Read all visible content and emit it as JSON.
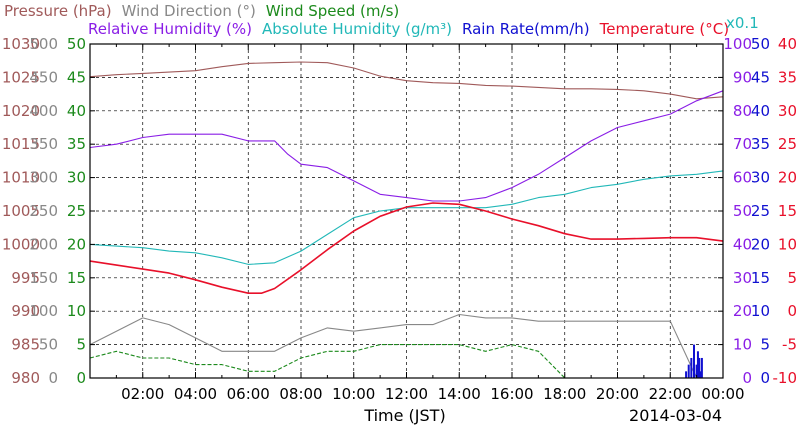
{
  "chart_data": {
    "type": "line",
    "date_label": "2014-03-04",
    "xlabel": "Time (JST)",
    "x_ticks": [
      "02:00",
      "04:00",
      "06:00",
      "08:00",
      "10:00",
      "12:00",
      "14:00",
      "16:00",
      "18:00",
      "20:00",
      "22:00",
      "00:00"
    ],
    "x_range_hours": [
      0,
      24
    ],
    "grid": true,
    "colors": {
      "pressure": "#a05a5a",
      "wind_direction": "#888888",
      "wind_speed": "#1c8a1c",
      "relative_humidity": "#8a1ee6",
      "absolute_humidity": "#22b8b8",
      "rain_rate": "#1010d0",
      "temperature": "#e8102a"
    },
    "legend_row1": [
      {
        "key": "pressure",
        "label": "Pressure (hPa)"
      },
      {
        "key": "wind_direction",
        "label": "Wind Direction (°)"
      },
      {
        "key": "wind_speed",
        "label": "Wind Speed (m/s)"
      }
    ],
    "legend_row2": [
      {
        "key": "relative_humidity",
        "label": "Relative Humidity (%)"
      },
      {
        "key": "absolute_humidity",
        "label": "Absolute Humidity (g/m³)"
      },
      {
        "key": "rain_rate",
        "label": "Rain Rate(mm/h)"
      },
      {
        "key": "temperature",
        "label": "Temperature (°C)"
      }
    ],
    "multiplier_label": "x0.1",
    "axes": {
      "pressure": {
        "range": [
          980,
          1030
        ],
        "ticks": [
          "1030",
          "1025",
          "1020",
          "1015",
          "1010",
          "1005",
          "1000",
          "995",
          "990",
          "985",
          "980"
        ]
      },
      "wind_direction": {
        "range": [
          0,
          500
        ],
        "ticks": [
          "500",
          "450",
          "400",
          "350",
          "300",
          "250",
          "200",
          "150",
          "100",
          "50",
          "0"
        ]
      },
      "wind_speed": {
        "range": [
          0,
          50
        ],
        "ticks": [
          "50",
          "45",
          "40",
          "35",
          "30",
          "25",
          "20",
          "15",
          "10",
          "5",
          "0"
        ]
      },
      "relative_humidity": {
        "range": [
          0,
          100
        ],
        "ticks": [
          "100",
          "90",
          "80",
          "70",
          "60",
          "50",
          "40",
          "30",
          "20",
          "10",
          "0"
        ]
      },
      "rain_rate": {
        "range": [
          0,
          50
        ],
        "ticks": [
          "50",
          "45",
          "40",
          "35",
          "30",
          "25",
          "20",
          "15",
          "10",
          "5",
          "0"
        ]
      },
      "temperature": {
        "range": [
          -10,
          40
        ],
        "ticks": [
          "40",
          "35",
          "30",
          "25",
          "20",
          "15",
          "10",
          "5",
          "0",
          "-5",
          "-10"
        ]
      }
    },
    "series": [
      {
        "key": "pressure",
        "axis": "pressure",
        "x": [
          0,
          1,
          2,
          3,
          4,
          5,
          6,
          7,
          8,
          9,
          10,
          11,
          12,
          13,
          14,
          15,
          16,
          17,
          18,
          19,
          20,
          21,
          22,
          23,
          24
        ],
        "y": [
          1025.1,
          1025.4,
          1025.6,
          1025.8,
          1026.0,
          1026.6,
          1027.1,
          1027.2,
          1027.3,
          1027.2,
          1026.4,
          1025.2,
          1024.5,
          1024.2,
          1024.1,
          1023.8,
          1023.7,
          1023.5,
          1023.3,
          1023.3,
          1023.2,
          1023.0,
          1022.5,
          1021.8,
          1022.1
        ]
      },
      {
        "key": "relative_humidity",
        "axis": "relative_humidity",
        "x": [
          0,
          1,
          2,
          3,
          4,
          5,
          6,
          7,
          7.5,
          8,
          9,
          10,
          11,
          12,
          13,
          14,
          15,
          16,
          17,
          18,
          19,
          20,
          21,
          22,
          23,
          24
        ],
        "y": [
          69,
          70,
          72,
          73,
          73,
          73,
          71,
          71,
          67,
          64,
          63,
          59,
          55,
          54,
          53,
          53,
          54,
          57,
          61,
          66,
          71,
          75,
          77,
          79,
          83,
          86
        ]
      },
      {
        "key": "absolute_humidity",
        "axis": "relative_humidity",
        "x": [
          0,
          1,
          2,
          3,
          4,
          5,
          6,
          7,
          8,
          9,
          10,
          11,
          12,
          13,
          14,
          15,
          16,
          17,
          18,
          19,
          20,
          21,
          22,
          23,
          24
        ],
        "y": [
          40,
          39.5,
          39,
          38,
          37.5,
          36,
          34,
          34.5,
          38,
          43,
          48,
          50,
          51,
          51,
          51,
          51,
          52,
          54,
          55,
          57,
          58,
          59.5,
          60.5,
          61,
          62
        ]
      },
      {
        "key": "temperature",
        "axis": "temperature",
        "x": [
          0,
          1,
          2,
          3,
          4,
          5,
          6,
          6.5,
          7,
          8,
          9,
          10,
          11,
          12,
          13,
          14,
          15,
          16,
          17,
          18,
          19,
          20,
          21,
          22,
          23,
          24
        ],
        "y": [
          7.5,
          6.9,
          6.3,
          5.7,
          4.7,
          3.6,
          2.7,
          2.7,
          3.4,
          6.2,
          9.2,
          12.0,
          14.2,
          15.6,
          16.2,
          16.0,
          15.0,
          13.8,
          12.8,
          11.6,
          10.8,
          10.8,
          10.9,
          11.0,
          11.0,
          10.5
        ]
      },
      {
        "key": "wind_direction",
        "axis": "wind_direction",
        "x": [
          0,
          1,
          2,
          3,
          4,
          5,
          6,
          7,
          8,
          9,
          10,
          11,
          12,
          13,
          14,
          15,
          16,
          17,
          18,
          19,
          20,
          21,
          22,
          23,
          24
        ],
        "y": [
          50,
          70,
          90,
          80,
          60,
          40,
          40,
          40,
          60,
          75,
          70,
          75,
          80,
          80,
          95,
          90,
          90,
          85,
          85,
          85,
          85,
          85,
          85,
          0,
          0
        ]
      },
      {
        "key": "wind_speed",
        "axis": "wind_speed",
        "x": [
          0,
          1,
          2,
          3,
          4,
          5,
          6,
          7,
          8,
          9,
          10,
          11,
          12,
          13,
          14,
          15,
          16,
          17,
          18,
          19,
          20,
          21,
          22,
          23,
          24
        ],
        "y": [
          3,
          4,
          3,
          3,
          2,
          2,
          1,
          1,
          3,
          4,
          4,
          5,
          5,
          5,
          5,
          4,
          5,
          4,
          0,
          0,
          0,
          0,
          0,
          0,
          0
        ]
      },
      {
        "key": "rain_rate",
        "axis": "rain_rate",
        "x": [
          22.6,
          22.7,
          22.8,
          22.9,
          23.0,
          23.05,
          23.1,
          23.15,
          23.2,
          23.3
        ],
        "y": [
          1,
          2,
          3,
          5,
          2,
          4,
          3,
          1,
          3,
          0
        ]
      }
    ]
  }
}
